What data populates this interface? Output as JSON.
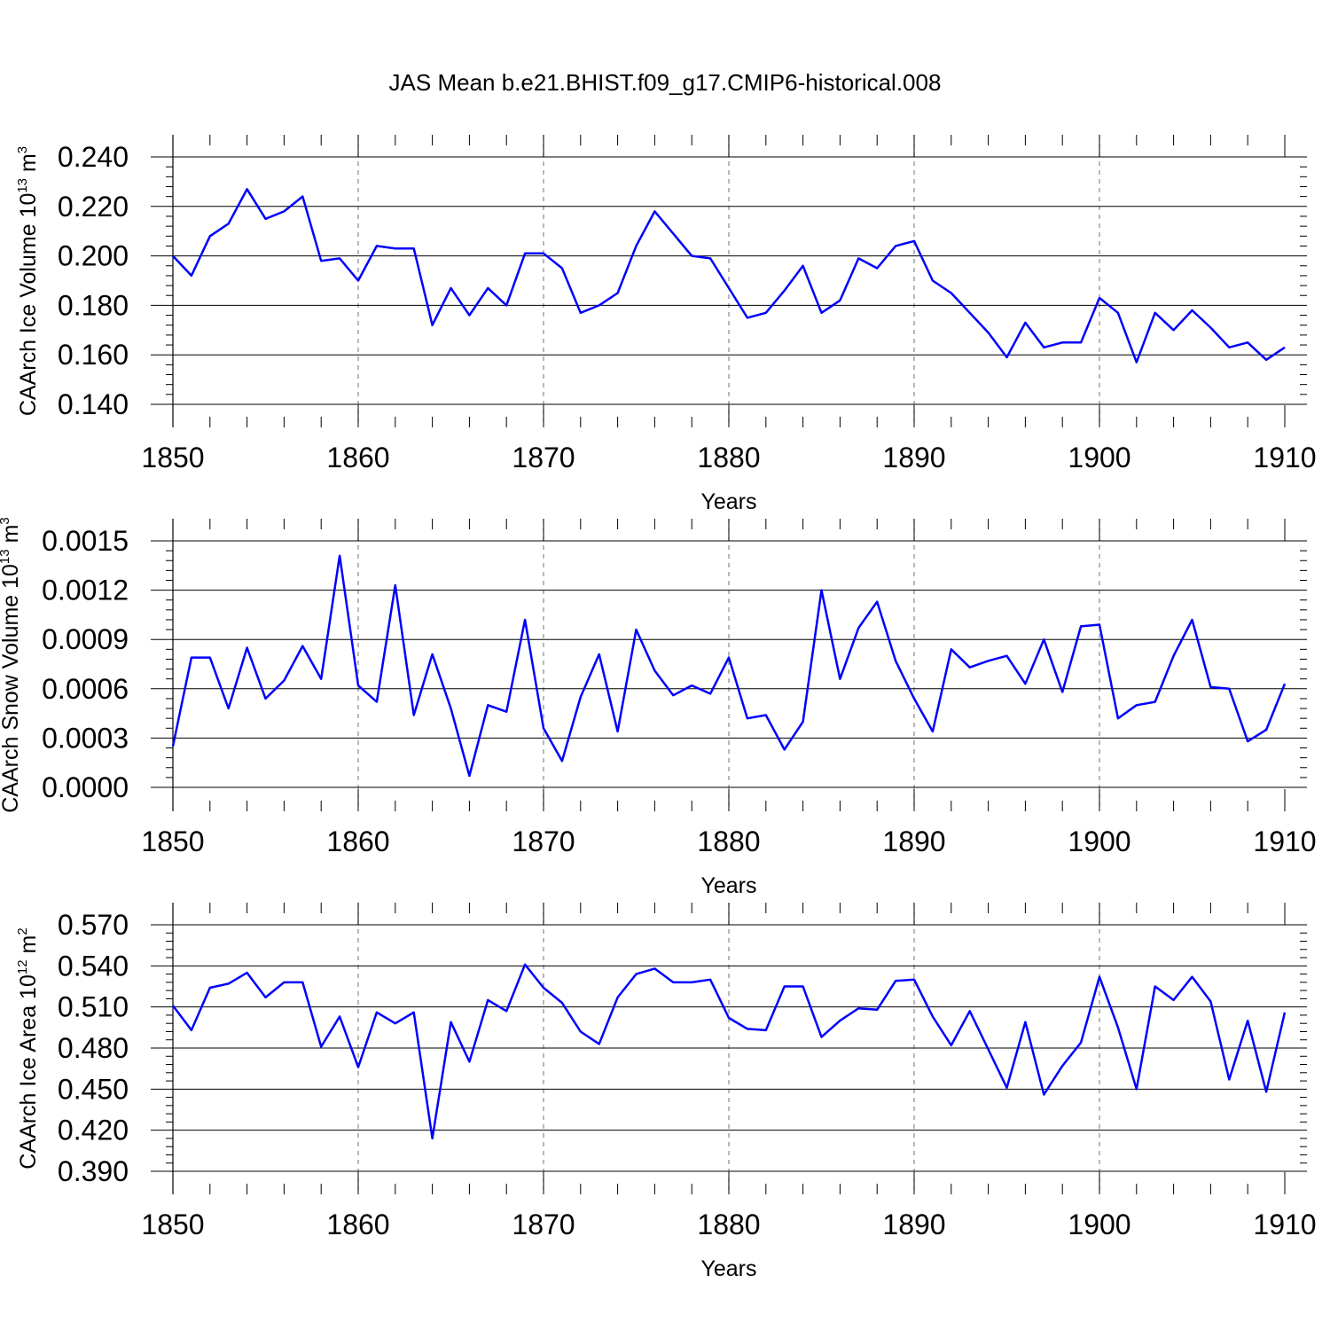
{
  "title": "JAS Mean b.e21.BHIST.f09_g17.CMIP6-historical.008",
  "colors": {
    "line": "#0000ff",
    "axis": "#000000",
    "grid": "#888888"
  },
  "chart_data": [
    {
      "type": "line",
      "name": "ice-volume",
      "ylabel": "CAArch Ice Volume 10",
      "ylabel_exp": "13",
      "ylabel_unit": " m",
      "ylabel_unit_exp": "3",
      "xlabel": "Years",
      "xlim": [
        1850,
        1910
      ],
      "ylim": [
        0.14,
        0.24
      ],
      "x_ticks": [
        1850,
        1860,
        1870,
        1880,
        1890,
        1900,
        1910
      ],
      "y_ticks": [
        0.14,
        0.16,
        0.18,
        0.2,
        0.22,
        0.24
      ],
      "y_tick_labels": [
        "0.140",
        "0.160",
        "0.180",
        "0.200",
        "0.220",
        "0.240"
      ],
      "grid": "vertical dashed at major x ticks",
      "x": [
        1850,
        1851,
        1852,
        1853,
        1854,
        1855,
        1856,
        1857,
        1858,
        1859,
        1860,
        1861,
        1862,
        1863,
        1864,
        1865,
        1866,
        1867,
        1868,
        1869,
        1870,
        1871,
        1872,
        1873,
        1874,
        1875,
        1876,
        1877,
        1878,
        1879,
        1880,
        1881,
        1882,
        1883,
        1884,
        1885,
        1886,
        1887,
        1888,
        1889,
        1890,
        1891,
        1892,
        1893,
        1894,
        1895,
        1896,
        1897,
        1898,
        1899,
        1900,
        1901,
        1902,
        1903,
        1904,
        1905,
        1906,
        1907,
        1908,
        1909,
        1910
      ],
      "values": [
        0.2,
        0.192,
        0.208,
        0.213,
        0.227,
        0.215,
        0.218,
        0.224,
        0.198,
        0.199,
        0.19,
        0.204,
        0.203,
        0.203,
        0.172,
        0.187,
        0.176,
        0.187,
        0.18,
        0.201,
        0.201,
        0.195,
        0.177,
        0.18,
        0.185,
        0.204,
        0.218,
        0.209,
        0.2,
        0.199,
        0.187,
        0.175,
        0.177,
        0.186,
        0.196,
        0.177,
        0.182,
        0.199,
        0.195,
        0.204,
        0.206,
        0.19,
        0.185,
        0.177,
        0.169,
        0.159,
        0.173,
        0.163,
        0.165,
        0.165,
        0.183,
        0.177,
        0.157,
        0.177,
        0.17,
        0.178,
        0.171,
        0.163,
        0.165,
        0.158,
        0.163
      ]
    },
    {
      "type": "line",
      "name": "snow-volume",
      "ylabel": "CAArch Snow Volume 10",
      "ylabel_exp": "13",
      "ylabel_unit": " m",
      "ylabel_unit_exp": "3",
      "xlabel": "Years",
      "xlim": [
        1850,
        1910
      ],
      "ylim": [
        0.0,
        0.0015
      ],
      "x_ticks": [
        1850,
        1860,
        1870,
        1880,
        1890,
        1900,
        1910
      ],
      "y_ticks": [
        0.0,
        0.0003,
        0.0006,
        0.0009,
        0.0012,
        0.0015
      ],
      "y_tick_labels": [
        "0.0000",
        "0.0003",
        "0.0006",
        "0.0009",
        "0.0012",
        "0.0015"
      ],
      "grid": "vertical dashed at major x ticks",
      "x": [
        1850,
        1851,
        1852,
        1853,
        1854,
        1855,
        1856,
        1857,
        1858,
        1859,
        1860,
        1861,
        1862,
        1863,
        1864,
        1865,
        1866,
        1867,
        1868,
        1869,
        1870,
        1871,
        1872,
        1873,
        1874,
        1875,
        1876,
        1877,
        1878,
        1879,
        1880,
        1881,
        1882,
        1883,
        1884,
        1885,
        1886,
        1887,
        1888,
        1889,
        1890,
        1891,
        1892,
        1893,
        1894,
        1895,
        1896,
        1897,
        1898,
        1899,
        1900,
        1901,
        1902,
        1903,
        1904,
        1905,
        1906,
        1907,
        1908,
        1909,
        1910
      ],
      "values": [
        0.00025,
        0.00079,
        0.00079,
        0.00048,
        0.00085,
        0.00054,
        0.00065,
        0.00086,
        0.00066,
        0.00141,
        0.00062,
        0.00052,
        0.00123,
        0.00044,
        0.00081,
        0.00048,
        7e-05,
        0.0005,
        0.00046,
        0.00102,
        0.00036,
        0.00016,
        0.00055,
        0.00081,
        0.00034,
        0.00096,
        0.00071,
        0.00056,
        0.00062,
        0.00057,
        0.00079,
        0.00042,
        0.00044,
        0.00023,
        0.0004,
        0.0012,
        0.00066,
        0.00097,
        0.00113,
        0.00077,
        0.00054,
        0.00034,
        0.00084,
        0.00073,
        0.00077,
        0.0008,
        0.00063,
        0.0009,
        0.00058,
        0.00098,
        0.00099,
        0.00042,
        0.0005,
        0.00052,
        0.0008,
        0.00102,
        0.00061,
        0.0006,
        0.00028,
        0.00035,
        0.00063
      ]
    },
    {
      "type": "line",
      "name": "ice-area",
      "ylabel": "CAArch Ice Area 10",
      "ylabel_exp": "12",
      "ylabel_unit": " m",
      "ylabel_unit_exp": "2",
      "xlabel": "Years",
      "xlim": [
        1850,
        1910
      ],
      "ylim": [
        0.39,
        0.57
      ],
      "x_ticks": [
        1850,
        1860,
        1870,
        1880,
        1890,
        1900,
        1910
      ],
      "y_ticks": [
        0.39,
        0.42,
        0.45,
        0.48,
        0.51,
        0.54,
        0.57
      ],
      "y_tick_labels": [
        "0.390",
        "0.420",
        "0.450",
        "0.480",
        "0.510",
        "0.540",
        "0.570"
      ],
      "grid": "vertical dashed at major x ticks",
      "x": [
        1850,
        1851,
        1852,
        1853,
        1854,
        1855,
        1856,
        1857,
        1858,
        1859,
        1860,
        1861,
        1862,
        1863,
        1864,
        1865,
        1866,
        1867,
        1868,
        1869,
        1870,
        1871,
        1872,
        1873,
        1874,
        1875,
        1876,
        1877,
        1878,
        1879,
        1880,
        1881,
        1882,
        1883,
        1884,
        1885,
        1886,
        1887,
        1888,
        1889,
        1890,
        1891,
        1892,
        1893,
        1894,
        1895,
        1896,
        1897,
        1898,
        1899,
        1900,
        1901,
        1902,
        1903,
        1904,
        1905,
        1906,
        1907,
        1908,
        1909,
        1910
      ],
      "values": [
        0.511,
        0.493,
        0.524,
        0.527,
        0.535,
        0.517,
        0.528,
        0.528,
        0.481,
        0.503,
        0.466,
        0.506,
        0.498,
        0.506,
        0.414,
        0.499,
        0.47,
        0.515,
        0.507,
        0.541,
        0.524,
        0.513,
        0.492,
        0.483,
        0.517,
        0.534,
        0.538,
        0.528,
        0.528,
        0.53,
        0.502,
        0.494,
        0.493,
        0.525,
        0.525,
        0.488,
        0.5,
        0.509,
        0.508,
        0.529,
        0.53,
        0.503,
        0.482,
        0.507,
        0.479,
        0.451,
        0.499,
        0.446,
        0.467,
        0.484,
        0.532,
        0.495,
        0.45,
        0.525,
        0.515,
        0.532,
        0.514,
        0.457,
        0.5,
        0.448,
        0.506
      ]
    }
  ]
}
